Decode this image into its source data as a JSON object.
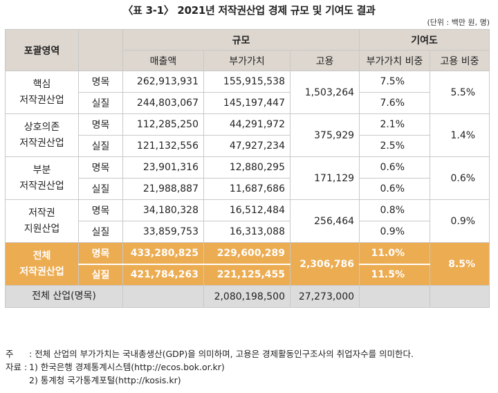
{
  "title": "〈표 3-1〉 2021년 저작권산업 경제 규모 및 기여도 결과",
  "unit": "(단위 : 백만 원, 명)",
  "headers": {
    "category": "포괄영역",
    "scale": "규모",
    "contribution": "기여도",
    "sales": "매출액",
    "value_added": "부가가치",
    "employment": "고용",
    "va_share": "부가가치 비중",
    "emp_share": "고용 비중"
  },
  "rows": [
    {
      "name": "핵심\n저작권산업",
      "nominal": {
        "label": "명목",
        "sales": "262,913,931",
        "va": "155,915,538",
        "va_share": "7.5%"
      },
      "real": {
        "label": "실질",
        "sales": "244,803,067",
        "va": "145,197,447",
        "va_share": "7.6%"
      },
      "employment": "1,503,264",
      "emp_share": "5.5%"
    },
    {
      "name": "상호의존\n저작권산업",
      "nominal": {
        "label": "명목",
        "sales": "112,285,250",
        "va": "44,291,972",
        "va_share": "2.1%"
      },
      "real": {
        "label": "실질",
        "sales": "121,132,556",
        "va": "47,927,234",
        "va_share": "2.5%"
      },
      "employment": "375,929",
      "emp_share": "1.4%"
    },
    {
      "name": "부분\n저작권산업",
      "nominal": {
        "label": "명목",
        "sales": "23,901,316",
        "va": "12,880,295",
        "va_share": "0.6%"
      },
      "real": {
        "label": "실질",
        "sales": "21,988,887",
        "va": "11,687,686",
        "va_share": "0.6%"
      },
      "employment": "171,129",
      "emp_share": "0.6%"
    },
    {
      "name": "저작권\n지원산업",
      "nominal": {
        "label": "명목",
        "sales": "34,180,328",
        "va": "16,512,484",
        "va_share": "0.8%"
      },
      "real": {
        "label": "실질",
        "sales": "33,859,753",
        "va": "16,313,088",
        "va_share": "0.9%"
      },
      "employment": "256,464",
      "emp_share": "0.9%"
    },
    {
      "name": "전체\n저작권산업",
      "nominal": {
        "label": "명목",
        "sales": "433,280,825",
        "va": "229,600,289",
        "va_share": "11.0%"
      },
      "real": {
        "label": "실질",
        "sales": "421,784,263",
        "va": "221,125,455",
        "va_share": "11.5%"
      },
      "employment": "2,306,786",
      "emp_share": "8.5%"
    }
  ],
  "total": {
    "label": "전체 산업(명목)",
    "va": "2,080,198,500",
    "employment": "27,273,000"
  },
  "notes": {
    "note_label": "주",
    "note_text": ":  전체 산업의 부가가치는 국내총생산(GDP)을 의미하며, 고용은 경제활동인구조사의 취업자수를 의미한다.",
    "source_label": "자료 :",
    "source1": "1)  한국은행 경제통계시스템(http://ecos.bok.or.kr)",
    "source2": "2)  통계청 국가통계포털(http://kosis.kr)"
  },
  "colors": {
    "header_bg": "#ddd7cf",
    "highlight": "#ecac52",
    "highlight_light": "#f1bd73",
    "total_bg": "#dcdcdc"
  }
}
